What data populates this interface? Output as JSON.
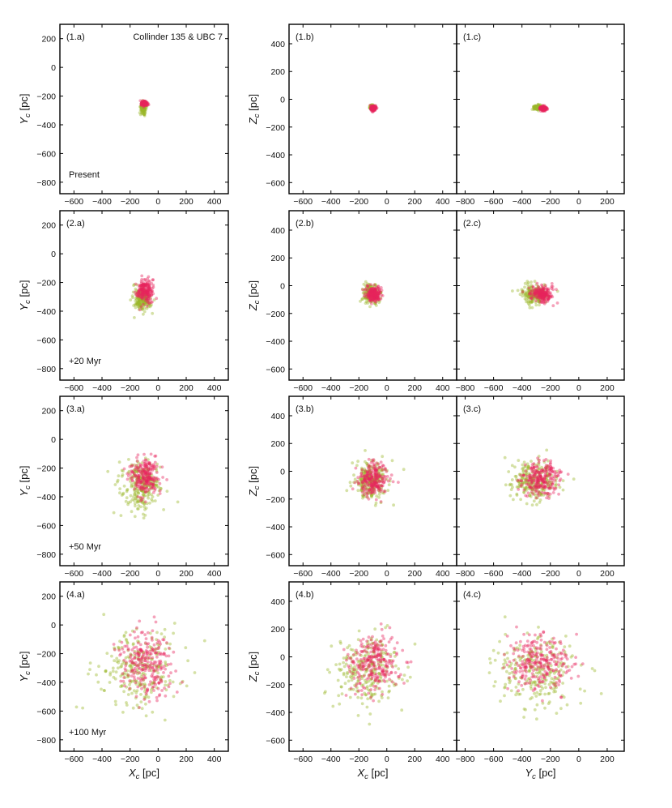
{
  "figure": {
    "title": "Collinder 135 & UBC 7",
    "colors": {
      "collinder135": "#9ab82a",
      "ubc7": "#e8245e",
      "axes": "#000000"
    }
  },
  "chart_data": [
    {
      "id": "1.a",
      "type": "scatter",
      "panel_label": "(1.a)",
      "title": "Collinder 135 & UBC 7",
      "annotation": "Present",
      "xlabel": "",
      "ylabel": "Y_c [pc]",
      "xlim": [
        -700,
        500
      ],
      "ylim": [
        -880,
        300
      ],
      "xticks": [
        -600,
        -400,
        -200,
        0,
        200,
        400
      ],
      "yticks": [
        -800,
        -600,
        -400,
        -200,
        0,
        200
      ],
      "series": [
        {
          "color": "#9ab82a",
          "center": [
            -105,
            -280
          ],
          "spread": [
            10,
            18
          ]
        },
        {
          "color": "#e8245e",
          "center": [
            -98,
            -252
          ],
          "spread": [
            12,
            8
          ]
        }
      ]
    },
    {
      "id": "1.b",
      "type": "scatter",
      "panel_label": "(1.b)",
      "xlabel": "",
      "ylabel": "Z_c [pc]",
      "xlim": [
        -700,
        500
      ],
      "ylim": [
        -680,
        540
      ],
      "xticks": [
        -600,
        -400,
        -200,
        0,
        200,
        400
      ],
      "yticks": [
        -600,
        -400,
        -200,
        0,
        200,
        400
      ],
      "series": [
        {
          "color": "#9ab82a",
          "center": [
            -105,
            -60
          ],
          "spread": [
            8,
            8
          ]
        },
        {
          "color": "#e8245e",
          "center": [
            -98,
            -65
          ],
          "spread": [
            10,
            8
          ]
        }
      ]
    },
    {
      "id": "1.c",
      "type": "scatter",
      "panel_label": "(1.c)",
      "xlabel": "",
      "ylabel": "",
      "xlim": [
        -860,
        320
      ],
      "ylim": [
        -680,
        540
      ],
      "xticks": [
        -800,
        -600,
        -400,
        -200,
        0,
        200
      ],
      "yticks": [
        -600,
        -400,
        -200,
        0,
        200,
        400
      ],
      "series": [
        {
          "color": "#9ab82a",
          "center": [
            -290,
            -60
          ],
          "spread": [
            15,
            8
          ]
        },
        {
          "color": "#e8245e",
          "center": [
            -250,
            -65
          ],
          "spread": [
            12,
            7
          ]
        }
      ]
    },
    {
      "id": "2.a",
      "type": "scatter",
      "panel_label": "(2.a)",
      "annotation": "+20 Myr",
      "xlabel": "",
      "ylabel": "Y_c [pc]",
      "xlim": [
        -700,
        500
      ],
      "ylim": [
        -880,
        300
      ],
      "xticks": [
        -600,
        -400,
        -200,
        0,
        200,
        400
      ],
      "yticks": [
        -800,
        -600,
        -400,
        -200,
        0,
        200
      ],
      "series": [
        {
          "color": "#9ab82a",
          "center": [
            -115,
            -320
          ],
          "spread": [
            30,
            40
          ]
        },
        {
          "color": "#e8245e",
          "center": [
            -95,
            -260
          ],
          "spread": [
            28,
            40
          ]
        }
      ]
    },
    {
      "id": "2.b",
      "type": "scatter",
      "panel_label": "(2.b)",
      "xlabel": "",
      "ylabel": "Z_c [pc]",
      "xlim": [
        -700,
        500
      ],
      "ylim": [
        -680,
        540
      ],
      "xticks": [
        -600,
        -400,
        -200,
        0,
        200,
        400
      ],
      "yticks": [
        -600,
        -400,
        -200,
        0,
        200,
        400
      ],
      "series": [
        {
          "color": "#9ab82a",
          "center": [
            -110,
            -60
          ],
          "spread": [
            30,
            35
          ]
        },
        {
          "color": "#e8245e",
          "center": [
            -95,
            -60
          ],
          "spread": [
            25,
            30
          ]
        }
      ]
    },
    {
      "id": "2.c",
      "type": "scatter",
      "panel_label": "(2.c)",
      "xlabel": "",
      "ylabel": "",
      "xlim": [
        -860,
        320
      ],
      "ylim": [
        -680,
        540
      ],
      "xticks": [
        -800,
        -600,
        -400,
        -200,
        0,
        200
      ],
      "yticks": [
        -600,
        -400,
        -200,
        0,
        200,
        400
      ],
      "series": [
        {
          "color": "#9ab82a",
          "center": [
            -320,
            -60
          ],
          "spread": [
            45,
            35
          ]
        },
        {
          "color": "#e8245e",
          "center": [
            -260,
            -60
          ],
          "spread": [
            40,
            30
          ]
        }
      ]
    },
    {
      "id": "3.a",
      "type": "scatter",
      "panel_label": "(3.a)",
      "annotation": "+50 Myr",
      "xlabel": "",
      "ylabel": "Y_c [pc]",
      "xlim": [
        -700,
        500
      ],
      "ylim": [
        -880,
        300
      ],
      "xticks": [
        -600,
        -400,
        -200,
        0,
        200,
        400
      ],
      "yticks": [
        -800,
        -600,
        -400,
        -200,
        0,
        200
      ],
      "series": [
        {
          "color": "#9ab82a",
          "center": [
            -125,
            -320
          ],
          "spread": [
            70,
            85
          ]
        },
        {
          "color": "#e8245e",
          "center": [
            -95,
            -260
          ],
          "spread": [
            50,
            65
          ]
        }
      ]
    },
    {
      "id": "3.b",
      "type": "scatter",
      "panel_label": "(3.b)",
      "xlabel": "",
      "ylabel": "Z_c [pc]",
      "xlim": [
        -700,
        500
      ],
      "ylim": [
        -680,
        540
      ],
      "xticks": [
        -600,
        -400,
        -200,
        0,
        200,
        400
      ],
      "yticks": [
        -600,
        -400,
        -200,
        0,
        200,
        400
      ],
      "series": [
        {
          "color": "#9ab82a",
          "center": [
            -120,
            -70
          ],
          "spread": [
            65,
            70
          ]
        },
        {
          "color": "#e8245e",
          "center": [
            -95,
            -55
          ],
          "spread": [
            50,
            60
          ]
        }
      ]
    },
    {
      "id": "3.c",
      "type": "scatter",
      "panel_label": "(3.c)",
      "xlabel": "",
      "ylabel": "",
      "xlim": [
        -860,
        320
      ],
      "ylim": [
        -680,
        540
      ],
      "xticks": [
        -800,
        -600,
        -400,
        -200,
        0,
        200
      ],
      "yticks": [
        -600,
        -400,
        -200,
        0,
        200,
        400
      ],
      "series": [
        {
          "color": "#9ab82a",
          "center": [
            -320,
            -70
          ],
          "spread": [
            85,
            70
          ]
        },
        {
          "color": "#e8245e",
          "center": [
            -260,
            -55
          ],
          "spread": [
            65,
            60
          ]
        }
      ]
    },
    {
      "id": "4.a",
      "type": "scatter",
      "panel_label": "(4.a)",
      "annotation": "+100 Myr",
      "xlabel": "X_c [pc]",
      "ylabel": "Y_c [pc]",
      "xlim": [
        -700,
        500
      ],
      "ylim": [
        -880,
        300
      ],
      "xticks": [
        -600,
        -400,
        -200,
        0,
        200,
        400
      ],
      "yticks": [
        -800,
        -600,
        -400,
        -200,
        0,
        200
      ],
      "series": [
        {
          "color": "#9ab82a",
          "center": [
            -140,
            -320
          ],
          "spread": [
            130,
            140
          ]
        },
        {
          "color": "#e8245e",
          "center": [
            -90,
            -270
          ],
          "spread": [
            95,
            120
          ]
        }
      ]
    },
    {
      "id": "4.b",
      "type": "scatter",
      "panel_label": "(4.b)",
      "xlabel": "X_c [pc]",
      "ylabel": "Z_c [pc]",
      "xlim": [
        -700,
        500
      ],
      "ylim": [
        -680,
        540
      ],
      "xticks": [
        -600,
        -400,
        -200,
        0,
        200,
        400
      ],
      "yticks": [
        -600,
        -400,
        -200,
        0,
        200,
        400
      ],
      "series": [
        {
          "color": "#9ab82a",
          "center": [
            -140,
            -90
          ],
          "spread": [
            120,
            120
          ]
        },
        {
          "color": "#e8245e",
          "center": [
            -90,
            -50
          ],
          "spread": [
            90,
            100
          ]
        }
      ]
    },
    {
      "id": "4.c",
      "type": "scatter",
      "panel_label": "(4.c)",
      "xlabel": "Y_c [pc]",
      "ylabel": "",
      "xlim": [
        -860,
        320
      ],
      "ylim": [
        -680,
        540
      ],
      "xticks": [
        -800,
        -600,
        -400,
        -200,
        0,
        200
      ],
      "yticks": [
        -600,
        -400,
        -200,
        0,
        200,
        400
      ],
      "series": [
        {
          "color": "#9ab82a",
          "center": [
            -310,
            -90
          ],
          "spread": [
            140,
            120
          ]
        },
        {
          "color": "#e8245e",
          "center": [
            -270,
            -50
          ],
          "spread": [
            120,
            100
          ]
        }
      ]
    }
  ]
}
